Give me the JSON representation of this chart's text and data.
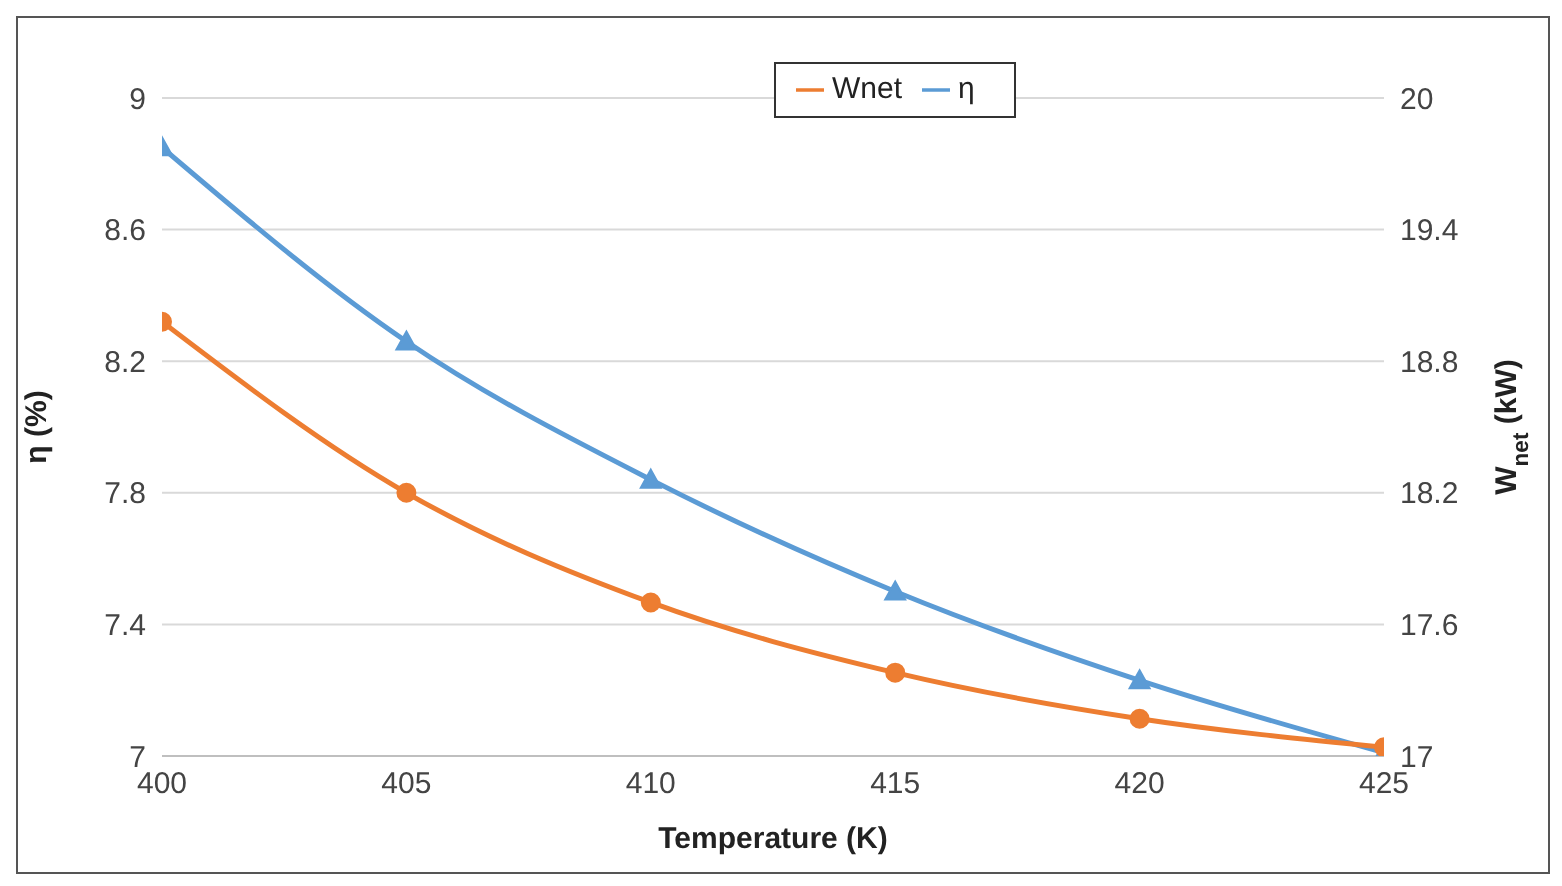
{
  "chart_data": {
    "type": "line",
    "xlabel": "Temperature (K)",
    "ylabel": "η (%)",
    "y2label": "W$_{net}$ (kW)",
    "x": [
      400,
      405,
      410,
      415,
      420,
      425
    ],
    "xlim": [
      400,
      425
    ],
    "xticks": [
      400,
      405,
      410,
      415,
      420,
      425
    ],
    "ylim": [
      7,
      9
    ],
    "yticks": [
      7,
      7.4,
      7.8,
      8.2,
      8.6,
      9
    ],
    "y2lim": [
      17,
      20
    ],
    "y2ticks": [
      17,
      17.6,
      18.2,
      18.8,
      19.4,
      20
    ],
    "grid": "y",
    "legend": "top right",
    "line_style": "solid",
    "series": [
      {
        "name": "η",
        "color": "#5b9bd5",
        "marker": "triangle",
        "values": [
          8.85,
          8.26,
          7.84,
          7.5,
          7.23,
          7.01
        ]
      },
      {
        "name": "Wnet",
        "color": "#ed7d31",
        "marker": "circle",
        "axis": "y2",
        "values": [
          18.98,
          18.2,
          17.7,
          17.38,
          17.17,
          17.04
        ]
      }
    ]
  }
}
